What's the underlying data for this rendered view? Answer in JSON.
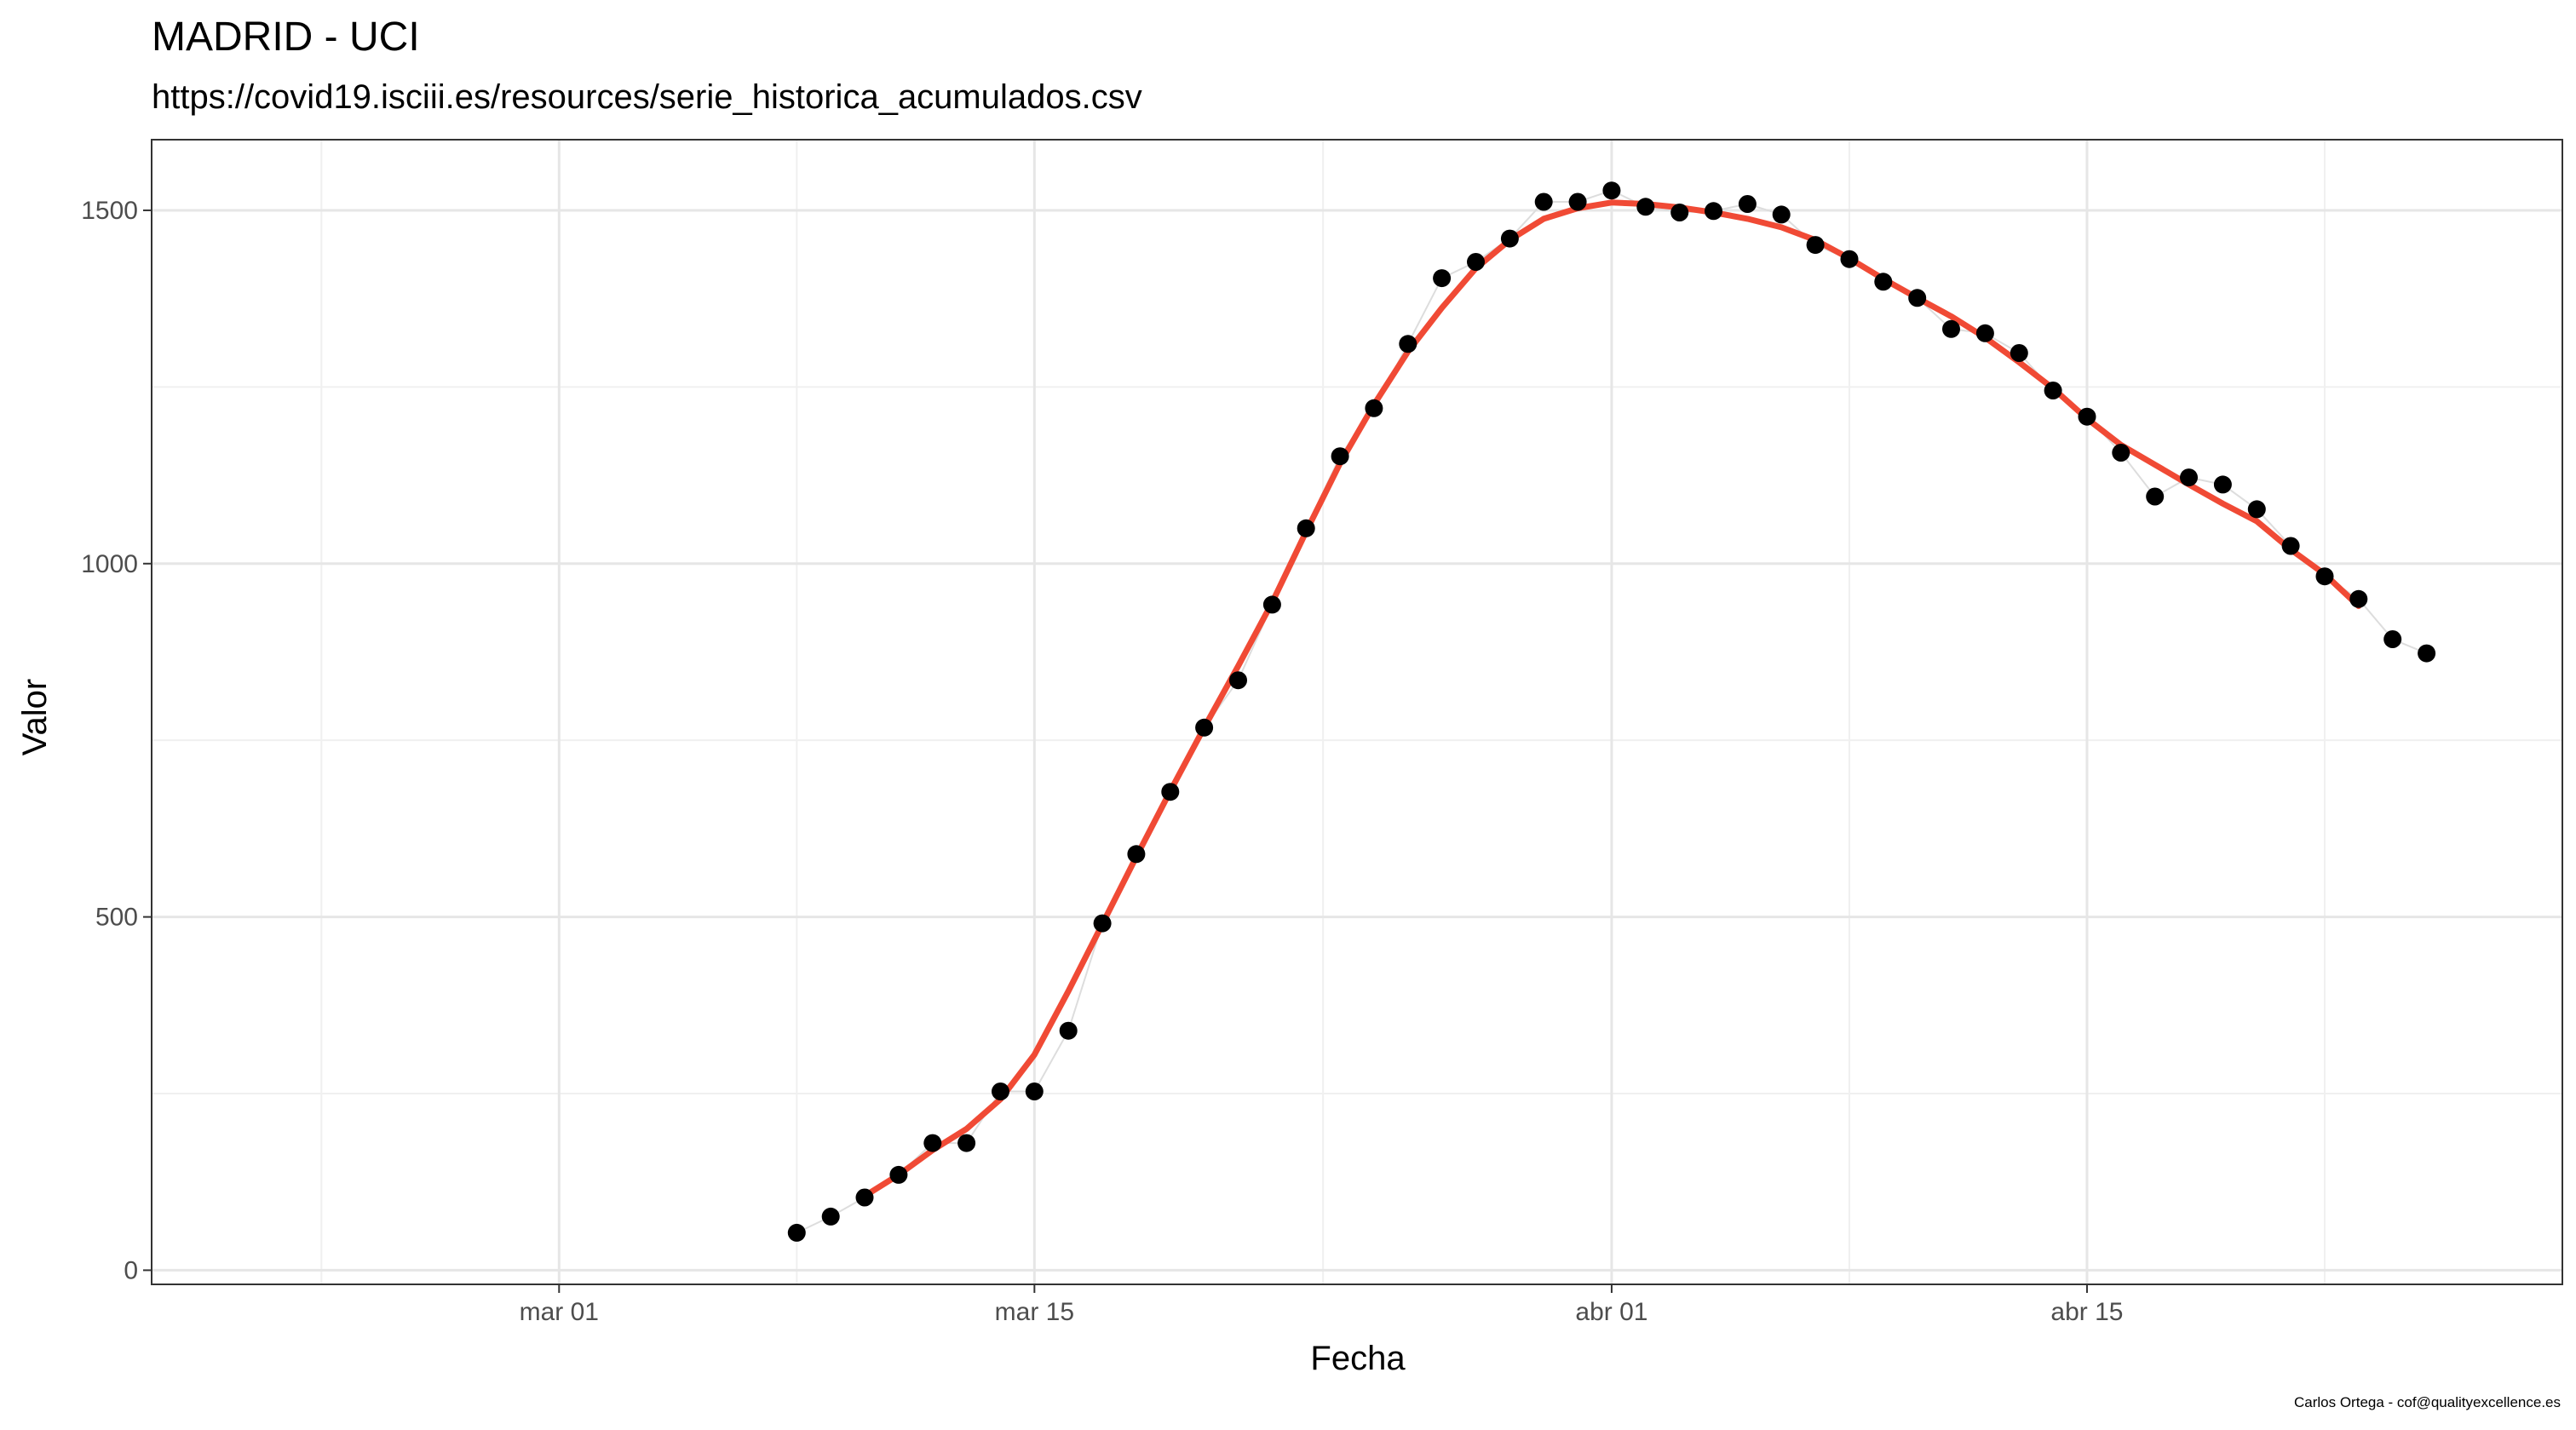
{
  "chart_data": {
    "type": "scatter",
    "title": "MADRID - UCI",
    "subtitle": "https://covid19.isciii.es/resources/serie_historica_acumulados.csv",
    "caption": "Carlos Ortega - cof@qualityexcellence.es",
    "xlabel": "Fecha",
    "ylabel": "Valor",
    "x_axis_type": "date",
    "xlim": [
      "2020-02-18",
      "2020-04-29"
    ],
    "ylim": [
      -20,
      1600
    ],
    "x_ticks": [
      {
        "date": "2020-03-01",
        "label": "mar 01"
      },
      {
        "date": "2020-03-15",
        "label": "mar 15"
      },
      {
        "date": "2020-04-01",
        "label": "abr 01"
      },
      {
        "date": "2020-04-15",
        "label": "abr 15"
      }
    ],
    "y_ticks": [
      0,
      500,
      1000,
      1500
    ],
    "grid": true,
    "legend": "none",
    "series": [
      {
        "kind": "points",
        "color": "#000000",
        "x": [
          "2020-03-08",
          "2020-03-09",
          "2020-03-10",
          "2020-03-11",
          "2020-03-12",
          "2020-03-13",
          "2020-03-14",
          "2020-03-15",
          "2020-03-16",
          "2020-03-17",
          "2020-03-18",
          "2020-03-19",
          "2020-03-20",
          "2020-03-21",
          "2020-03-22",
          "2020-03-23",
          "2020-03-24",
          "2020-03-25",
          "2020-03-26",
          "2020-03-27",
          "2020-03-28",
          "2020-03-29",
          "2020-03-30",
          "2020-03-31",
          "2020-04-01",
          "2020-04-02",
          "2020-04-03",
          "2020-04-04",
          "2020-04-05",
          "2020-04-06",
          "2020-04-07",
          "2020-04-08",
          "2020-04-09",
          "2020-04-10",
          "2020-04-11",
          "2020-04-12",
          "2020-04-13",
          "2020-04-14",
          "2020-04-15",
          "2020-04-16",
          "2020-04-17",
          "2020-04-18",
          "2020-04-19",
          "2020-04-20",
          "2020-04-21",
          "2020-04-22",
          "2020-04-23",
          "2020-04-24",
          "2020-04-25"
        ],
        "y": [
          53,
          76,
          103,
          135,
          180,
          180,
          253,
          253,
          339,
          491,
          589,
          677,
          768,
          835,
          942,
          1050,
          1152,
          1220,
          1311,
          1404,
          1427,
          1460,
          1512,
          1512,
          1528,
          1505,
          1497,
          1499,
          1509,
          1494,
          1451,
          1431,
          1399,
          1376,
          1332,
          1326,
          1298,
          1245,
          1208,
          1157,
          1095,
          1122,
          1112,
          1077,
          1025,
          982,
          950,
          893,
          873
        ]
      },
      {
        "kind": "smooth",
        "color": "#f04a35",
        "x": [
          "2020-03-10",
          "2020-03-11",
          "2020-03-12",
          "2020-03-13",
          "2020-03-14",
          "2020-03-15",
          "2020-03-16",
          "2020-03-17",
          "2020-03-18",
          "2020-03-19",
          "2020-03-20",
          "2020-03-21",
          "2020-03-22",
          "2020-03-23",
          "2020-03-24",
          "2020-03-25",
          "2020-03-26",
          "2020-03-27",
          "2020-03-28",
          "2020-03-29",
          "2020-03-30",
          "2020-03-31",
          "2020-04-01",
          "2020-04-02",
          "2020-04-03",
          "2020-04-04",
          "2020-04-05",
          "2020-04-06",
          "2020-04-07",
          "2020-04-08",
          "2020-04-09",
          "2020-04-10",
          "2020-04-11",
          "2020-04-12",
          "2020-04-13",
          "2020-04-14",
          "2020-04-15",
          "2020-04-16",
          "2020-04-17",
          "2020-04-18",
          "2020-04-19",
          "2020-04-20",
          "2020-04-21",
          "2020-04-22",
          "2020-04-23"
        ],
        "y": [
          105,
          135,
          170,
          200,
          242,
          305,
          395,
          490,
          585,
          678,
          768,
          855,
          945,
          1045,
          1142,
          1225,
          1300,
          1362,
          1418,
          1458,
          1488,
          1503,
          1511,
          1509,
          1504,
          1497,
          1488,
          1476,
          1458,
          1432,
          1403,
          1376,
          1350,
          1320,
          1285,
          1248,
          1205,
          1168,
          1140,
          1112,
          1085,
          1060,
          1020,
          985,
          940
        ]
      }
    ]
  }
}
